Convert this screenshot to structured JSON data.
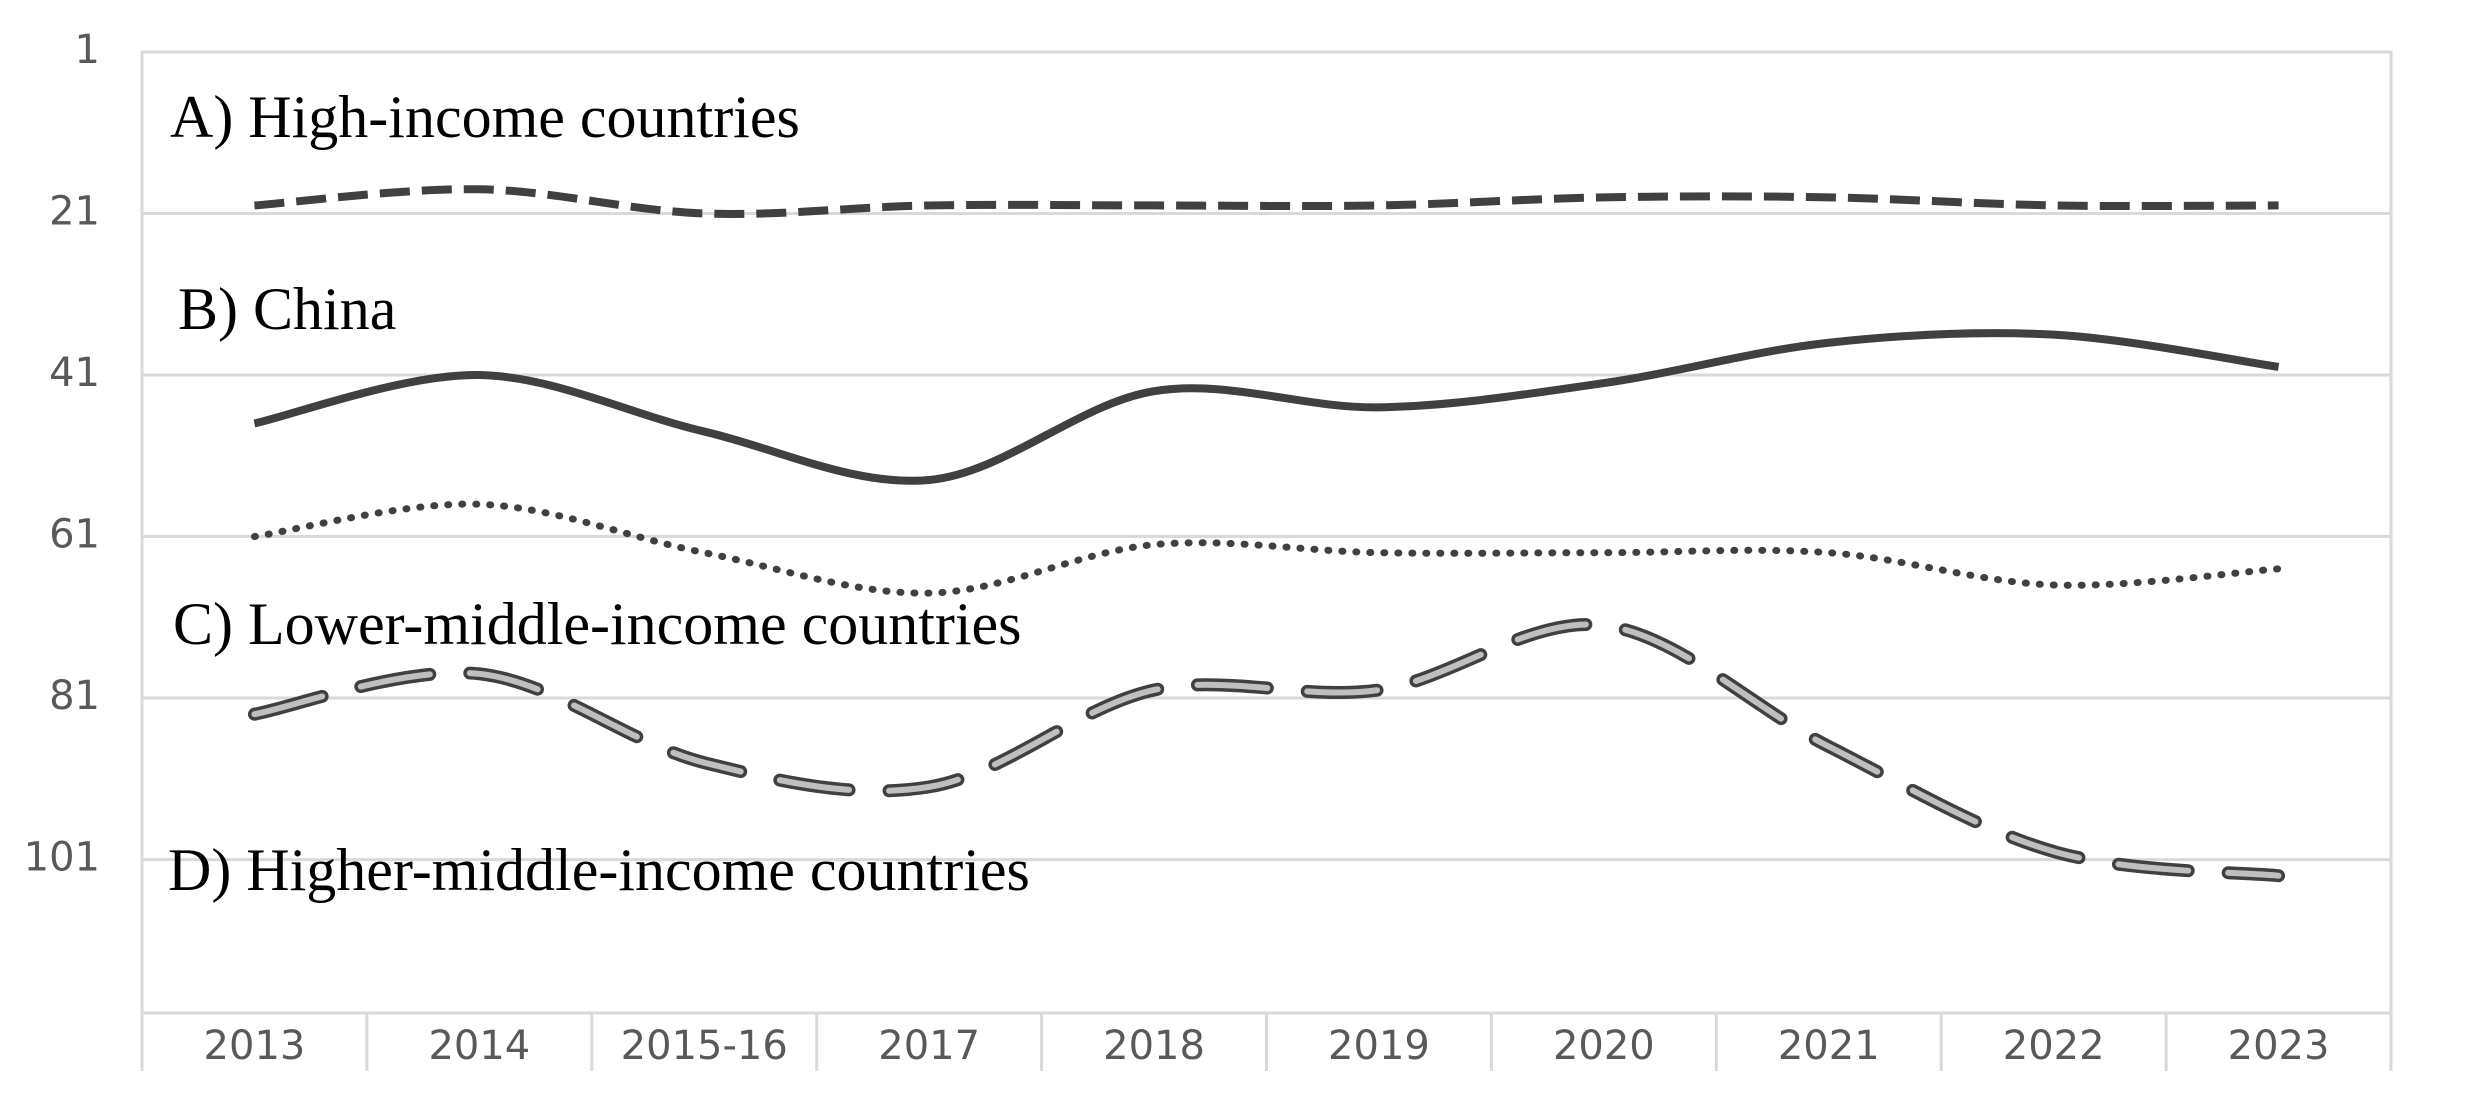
{
  "chart_data": {
    "type": "line",
    "categories": [
      "2013",
      "2014",
      "2015-16",
      "2017",
      "2018",
      "2019",
      "2020",
      "2021",
      "2022",
      "2023"
    ],
    "series": [
      {
        "color": "#404040",
        "style": "dashed",
        "values": [
          20,
          18,
          21,
          20,
          20,
          20,
          19,
          19,
          20,
          20
        ]
      },
      {
        "color": "#404040",
        "style": "solid",
        "values": [
          47,
          41,
          48,
          54,
          43,
          45,
          42,
          37,
          36,
          40
        ]
      },
      {
        "color": "#404040",
        "style": "dotted",
        "values": [
          61,
          57,
          63,
          68,
          62,
          63,
          63,
          63,
          67,
          65
        ]
      },
      {
        "color": "#bfbfbf",
        "style": "double-dashed",
        "values": [
          83,
          78,
          89,
          92,
          80,
          80,
          72,
          87,
          100,
          103
        ]
      }
    ],
    "annotations": [
      "A) High-income countries",
      "B) China",
      "C) Lower-middle-income countries",
      "D) Higher-middle-income countries"
    ],
    "ylim": [
      1,
      120
    ],
    "y_inverted": true,
    "yticks": [
      1,
      21,
      41,
      61,
      81,
      101
    ],
    "grid": true
  }
}
